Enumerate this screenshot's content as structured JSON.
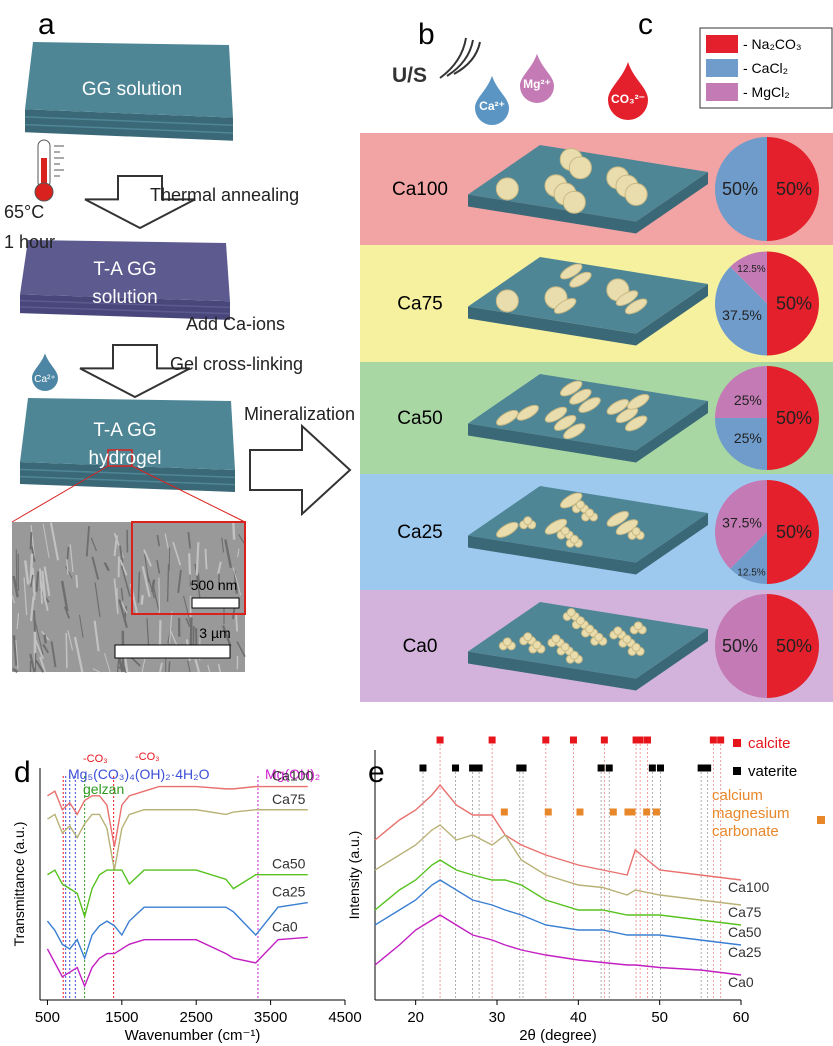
{
  "figure": {
    "a": {
      "label": "a",
      "slab1": "GG solution",
      "step1": "Thermal annealing",
      "temperature": "65°C",
      "time": "1 hour",
      "slab2": [
        "T-A GG",
        "solution"
      ],
      "step2": [
        "Add Ca-ions",
        "Gel cross-linking"
      ],
      "ion": "Ca²⁺",
      "slab3": [
        "T-A GG",
        "hydrogel"
      ],
      "step3": "Mineralization",
      "inset_scale": "500 nm",
      "scale": "3 µm"
    },
    "b": {
      "label": "b",
      "ultrasound": "U/S",
      "ions": [
        "Ca²⁺",
        "Mg²⁺",
        "CO₃²⁻"
      ]
    }
  },
  "chart_data": [
    {
      "type": "pie",
      "panel": "c",
      "categories": [
        "Ca100",
        "Ca75",
        "Ca50",
        "Ca25",
        "Ca0"
      ],
      "series": [
        {
          "name": "- Na₂CO₃",
          "color": "#e3202b",
          "values": [
            50,
            50,
            50,
            50,
            50
          ],
          "value_labels": [
            "50%",
            "50%",
            "50%",
            "50%",
            "50%"
          ]
        },
        {
          "name": "- CaCl₂",
          "color": "#6f9ccb",
          "values": [
            50,
            37.5,
            25,
            12.5,
            0
          ],
          "value_labels": [
            "50%",
            "37.5%",
            "25%",
            "12.5%",
            null
          ]
        },
        {
          "name": "- MgCl₂",
          "color": "#c47ab4",
          "values": [
            0,
            12.5,
            25,
            37.5,
            50
          ],
          "value_labels": [
            null,
            "12.5%",
            "25%",
            "37.5%",
            "50%"
          ]
        }
      ]
    },
    {
      "type": "line",
      "panel": "d",
      "x_label": "Wavenumber (cm⁻¹)",
      "y_label": "Transmittance (a.u.)",
      "xlim": [
        400,
        4500
      ],
      "xticks": [
        500,
        1500,
        2500,
        3500,
        4500
      ],
      "ylim": [
        0,
        100
      ],
      "x": [
        500,
        600,
        700,
        800,
        900,
        1000,
        1100,
        1200,
        1300,
        1400,
        1500,
        1600,
        1800,
        2000,
        2500,
        2900,
        3000,
        3300,
        3600,
        4000
      ],
      "series": [
        {
          "name": "Ca100",
          "color": "#e8706e",
          "values": [
            88,
            90,
            82,
            85,
            80,
            86,
            88,
            88,
            84,
            66,
            84,
            88,
            90,
            92,
            92,
            91,
            91,
            92,
            92,
            92
          ]
        },
        {
          "name": "Ca75",
          "color": "#b8b276",
          "values": [
            78,
            80,
            72,
            75,
            70,
            76,
            80,
            80,
            74,
            56,
            74,
            80,
            82,
            82,
            82,
            80,
            81,
            82,
            82,
            82
          ]
        },
        {
          "name": "Ca50",
          "color": "#57c21f",
          "values": [
            54,
            56,
            50,
            48,
            46,
            36,
            48,
            54,
            56,
            56,
            56,
            50,
            56,
            56,
            56,
            52,
            48,
            54,
            54,
            54
          ]
        },
        {
          "name": "Ca25",
          "color": "#3a7fd2",
          "values": [
            34,
            30,
            24,
            22,
            26,
            18,
            28,
            32,
            34,
            32,
            28,
            34,
            40,
            40,
            40,
            40,
            38,
            28,
            40,
            42
          ]
        },
        {
          "name": "Ca0",
          "color": "#c21fc2",
          "values": [
            22,
            16,
            10,
            12,
            14,
            6,
            14,
            18,
            20,
            20,
            22,
            24,
            26,
            26,
            26,
            20,
            18,
            16,
            26,
            27
          ]
        }
      ],
      "annotations": [
        {
          "text": "-CO₃",
          "x": [
            712
          ],
          "color": "#e8141c"
        },
        {
          "text": "-CO₃",
          "x": [
            1390
          ],
          "color": "#e8141c"
        },
        {
          "text": "Mg₅(CO₃)₄(OH)₂·4H₂O",
          "x": [
            745,
            800,
            875
          ],
          "color": "#3c4fd6"
        },
        {
          "text": "gelzan",
          "x": [
            1000
          ],
          "color": "#2e9a1e"
        },
        {
          "text": "Mg(OH)₂",
          "x": [
            3330
          ],
          "color": "#d020d0"
        }
      ]
    },
    {
      "type": "line",
      "panel": "e",
      "x_label": "2θ (degree)",
      "y_label": "Intensity (a.u.)",
      "xlim": [
        15,
        60
      ],
      "xticks": [
        20,
        30,
        40,
        50,
        60
      ],
      "ylim": [
        0,
        100
      ],
      "x": [
        15,
        18,
        20,
        22,
        23,
        25,
        27,
        29.4,
        31,
        33,
        36,
        40,
        43,
        46,
        47,
        50,
        55,
        60
      ],
      "series": [
        {
          "name": "Ca100",
          "color": "#e8706e",
          "values": [
            64,
            72,
            76,
            82,
            86,
            78,
            74,
            74,
            66,
            62,
            58,
            54,
            52,
            50,
            60,
            52,
            50,
            48
          ]
        },
        {
          "name": "Ca75",
          "color": "#b8b276",
          "values": [
            52,
            58,
            62,
            68,
            70,
            64,
            66,
            62,
            66,
            56,
            50,
            46,
            45,
            42,
            44,
            42,
            40,
            38
          ]
        },
        {
          "name": "Ca50",
          "color": "#57c21f",
          "values": [
            36,
            44,
            48,
            54,
            56,
            52,
            50,
            48,
            48,
            46,
            40,
            36,
            36,
            34,
            34,
            34,
            32,
            30
          ]
        },
        {
          "name": "Ca25",
          "color": "#3a7fd2",
          "values": [
            30,
            36,
            40,
            46,
            48,
            44,
            40,
            38,
            36,
            34,
            30,
            28,
            28,
            26,
            26,
            26,
            24,
            22
          ]
        },
        {
          "name": "Ca0",
          "color": "#c21fc2",
          "values": [
            14,
            22,
            28,
            32,
            34,
            30,
            26,
            24,
            22,
            20,
            18,
            16,
            15,
            14,
            14,
            13,
            12,
            10
          ]
        }
      ],
      "phases": [
        {
          "name_lines": [
            "calcite"
          ],
          "color": "#e8141c",
          "positions": [
            23.0,
            29.4,
            36.0,
            39.4,
            43.2,
            47.1,
            47.6,
            48.5,
            56.6,
            57.5
          ]
        },
        {
          "name_lines": [
            "vaterite"
          ],
          "color": "#000000",
          "positions": [
            20.9,
            24.9,
            27.0,
            27.8,
            32.8,
            33.2,
            42.8,
            43.8,
            49.1,
            50.1,
            55.1,
            55.9
          ]
        },
        {
          "name_lines": [
            "calcium",
            "magnesium",
            "carbonate"
          ],
          "color": "#e8872a",
          "positions": [
            30.9,
            36.3,
            40.2,
            44.3,
            46.1,
            46.6,
            48.4,
            49.6
          ]
        }
      ]
    }
  ]
}
